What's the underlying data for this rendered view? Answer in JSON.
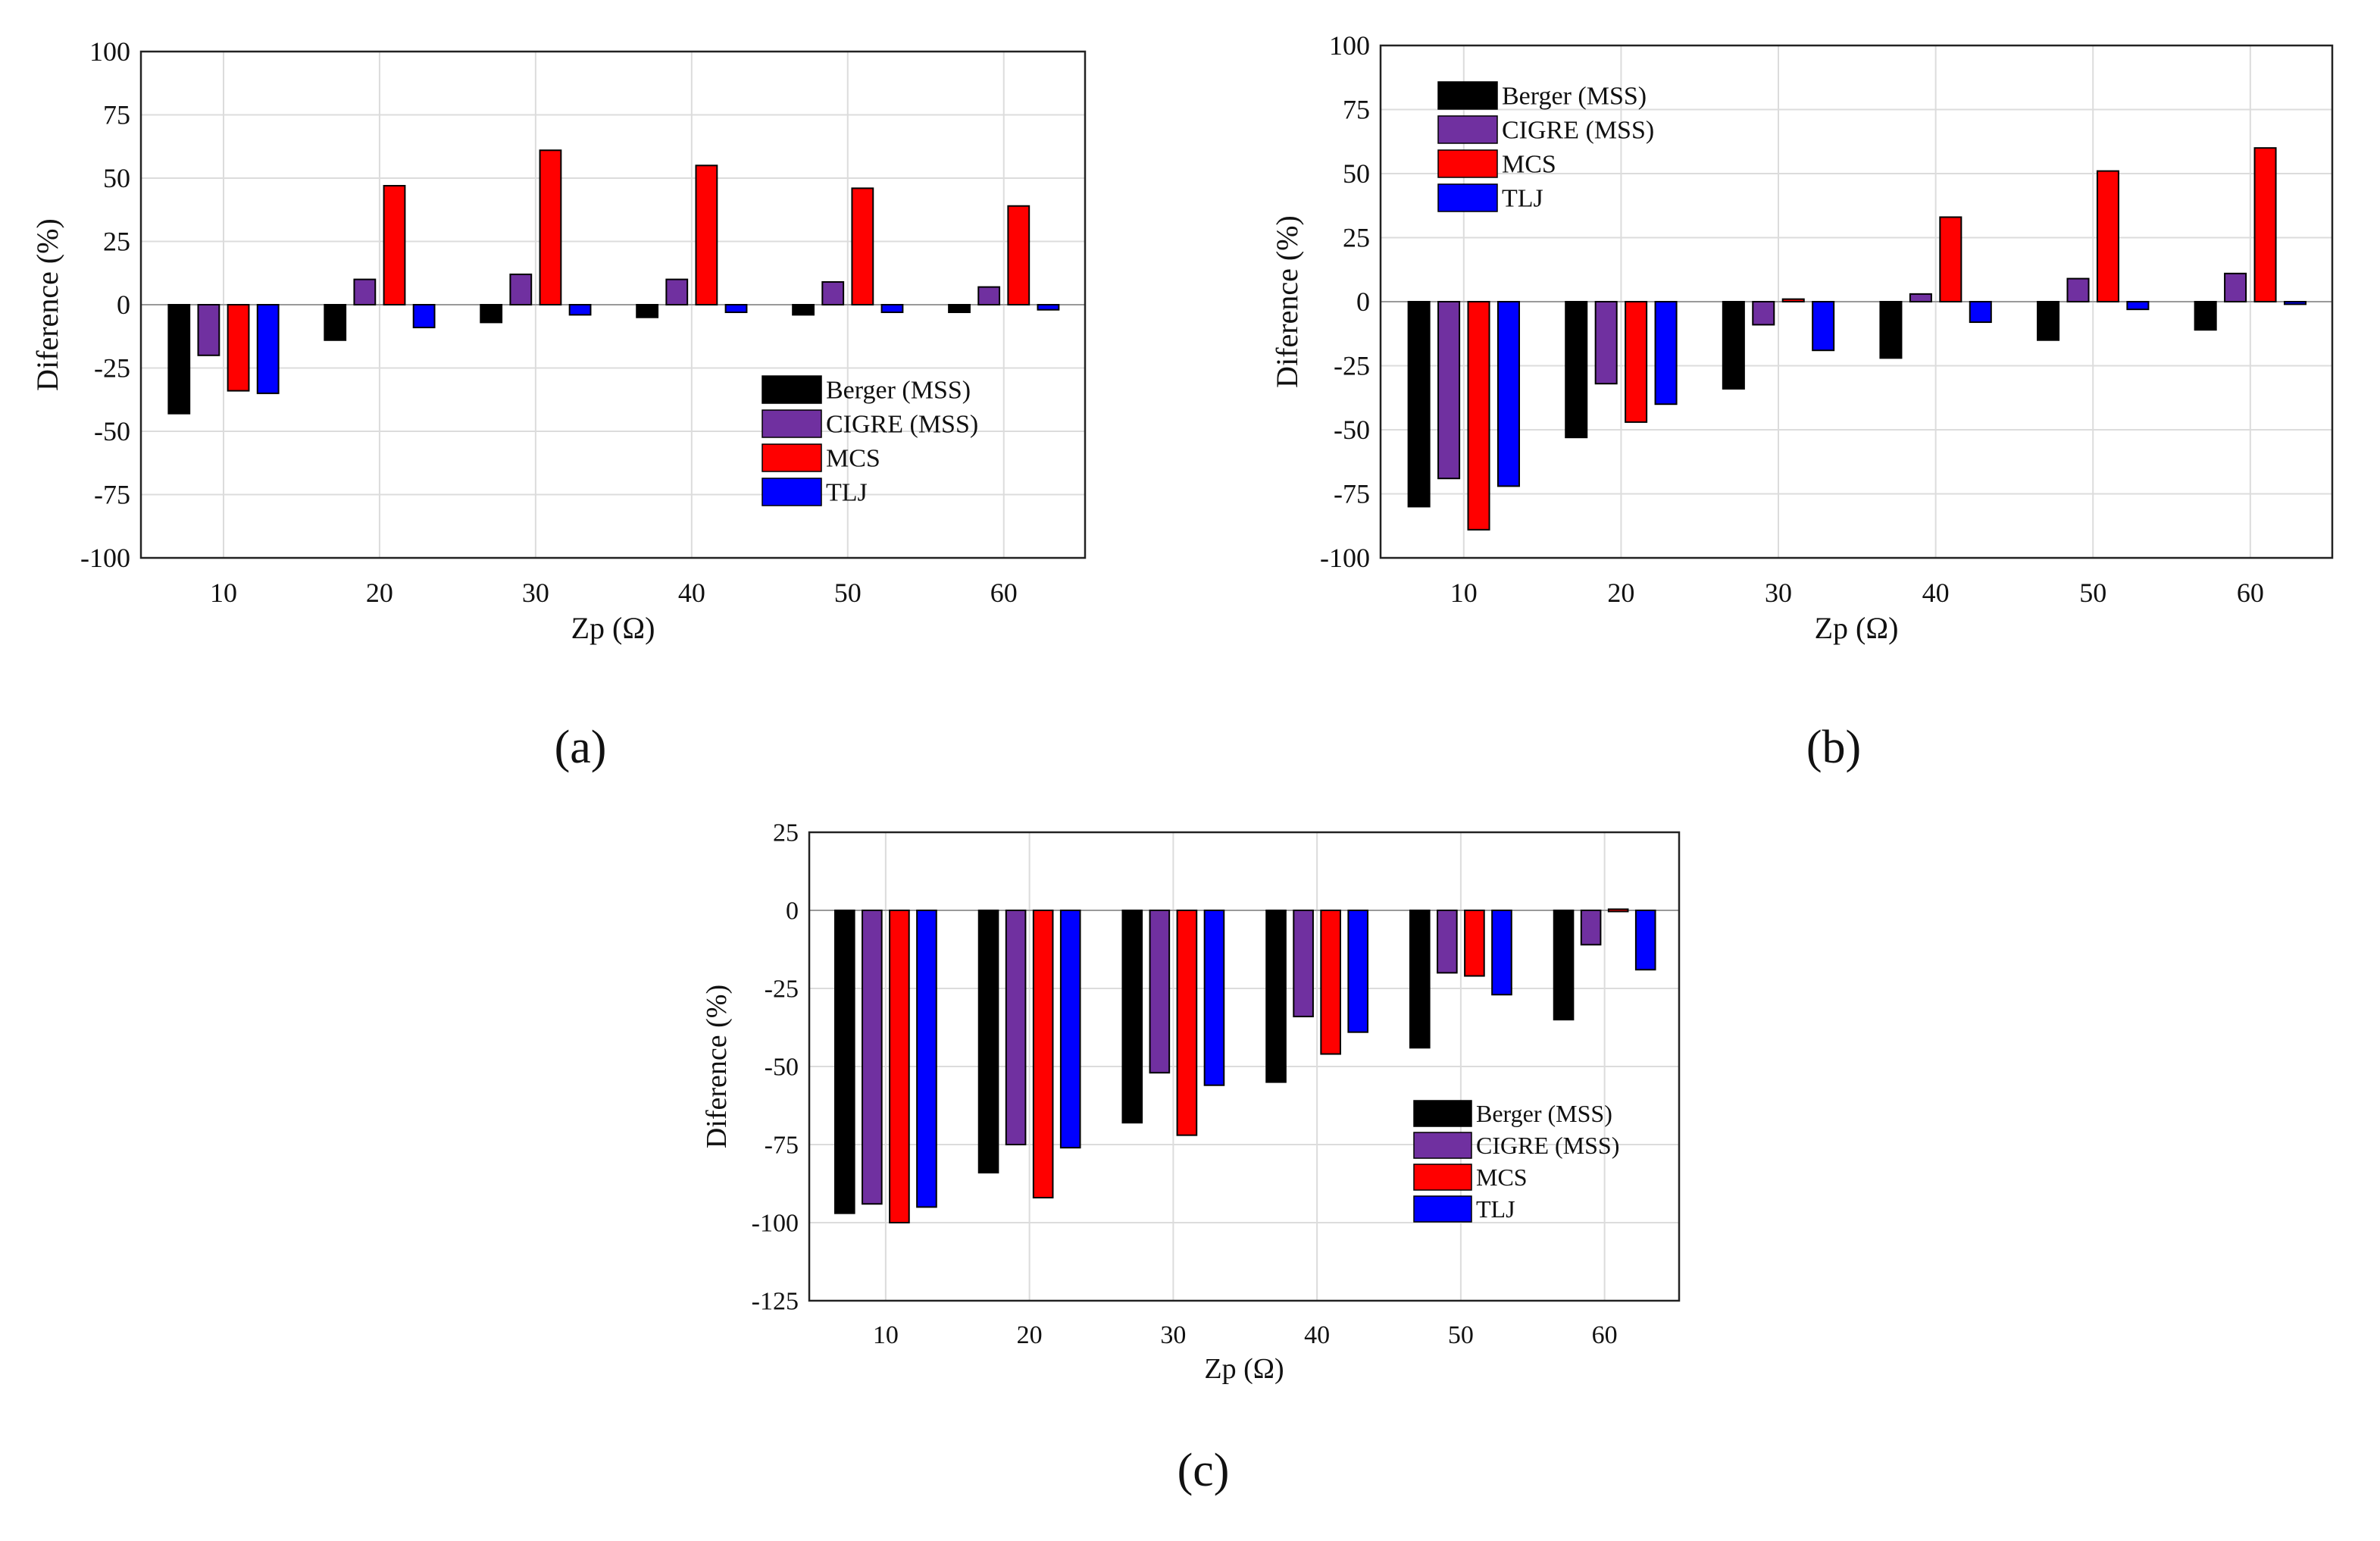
{
  "colors": {
    "Berger (MSS)": "#000000",
    "CIGRE (MSS)": "#7030a0",
    "MCS": "#ff0000",
    "TLJ": "#0000ff",
    "grid": "#dcdcdc",
    "axis": "#222222"
  },
  "chart_data": [
    {
      "id": "a",
      "panel_label": "(a)",
      "type": "bar",
      "xlabel": "Zp (Ω)",
      "ylabel": "Diference (%)",
      "ylim": [
        -100,
        100
      ],
      "yticks": [
        100,
        75,
        50,
        25,
        0,
        -25,
        -50,
        -75,
        -100
      ],
      "categories": [
        "10",
        "20",
        "30",
        "40",
        "50",
        "60"
      ],
      "grid": true,
      "legend_position": "lower-right",
      "series": [
        {
          "name": "Berger (MSS)",
          "values": [
            -43,
            -14,
            -7,
            -5,
            -4,
            -3
          ]
        },
        {
          "name": "CIGRE (MSS)",
          "values": [
            -20,
            10,
            12,
            10,
            9,
            7
          ]
        },
        {
          "name": "MCS",
          "values": [
            -34,
            47,
            61,
            55,
            46,
            39
          ]
        },
        {
          "name": "TLJ",
          "values": [
            -35,
            -9,
            -4,
            -3,
            -3,
            -2
          ]
        }
      ]
    },
    {
      "id": "b",
      "panel_label": "(b)",
      "type": "bar",
      "xlabel": "Zp (Ω)",
      "ylabel": "Diference (%)",
      "ylim": [
        -100,
        100
      ],
      "yticks": [
        100,
        75,
        50,
        25,
        0,
        -25,
        -50,
        -75,
        -100
      ],
      "categories": [
        "10",
        "20",
        "30",
        "40",
        "50",
        "60"
      ],
      "grid": true,
      "legend_position": "top-left",
      "series": [
        {
          "name": "Berger (MSS)",
          "values": [
            -80,
            -53,
            -34,
            -22,
            -15,
            -11
          ]
        },
        {
          "name": "CIGRE (MSS)",
          "values": [
            -69,
            -32,
            -9,
            3,
            9,
            11
          ]
        },
        {
          "name": "MCS",
          "values": [
            -89,
            -47,
            1,
            33,
            51,
            60
          ]
        },
        {
          "name": "TLJ",
          "values": [
            -72,
            -40,
            -19,
            -8,
            -3,
            -1
          ]
        }
      ]
    },
    {
      "id": "c",
      "panel_label": "(c)",
      "type": "bar",
      "xlabel": "Zp (Ω)",
      "ylabel": "Diference (%)",
      "ylim": [
        -125,
        25
      ],
      "yticks": [
        25,
        0,
        -25,
        -50,
        -75,
        -100,
        -125
      ],
      "categories": [
        "10",
        "20",
        "30",
        "40",
        "50",
        "60"
      ],
      "grid": true,
      "legend_position": "lower-right",
      "series": [
        {
          "name": "Berger (MSS)",
          "values": [
            -97,
            -84,
            -68,
            -55,
            -44,
            -35
          ]
        },
        {
          "name": "CIGRE (MSS)",
          "values": [
            -94,
            -75,
            -52,
            -34,
            -20,
            -11
          ]
        },
        {
          "name": "MCS",
          "values": [
            -100,
            -92,
            -72,
            -46,
            -21,
            0
          ]
        },
        {
          "name": "TLJ",
          "values": [
            -95,
            -76,
            -56,
            -39,
            -27,
            -19
          ]
        }
      ]
    }
  ]
}
